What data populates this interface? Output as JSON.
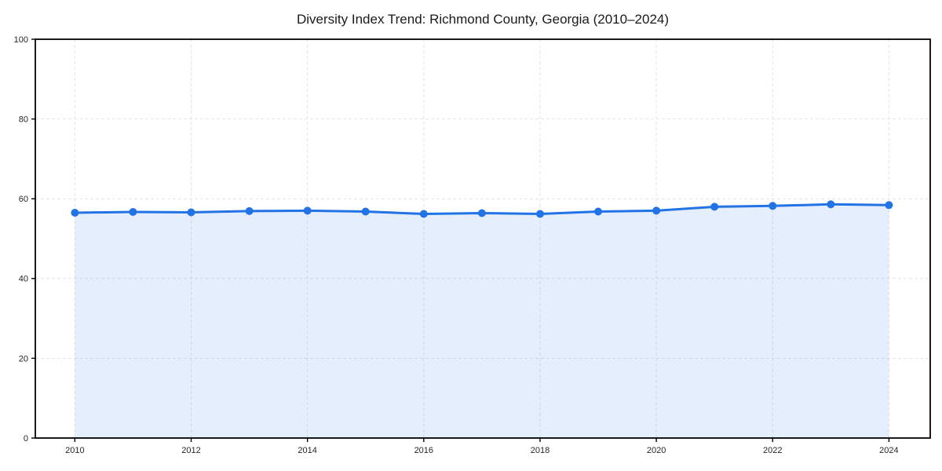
{
  "page": {
    "background": "#ffffff"
  },
  "chart_data": {
    "type": "line",
    "title": "Diversity Index Trend: Richmond County, Georgia (2010–2024)",
    "xlabel": "",
    "ylabel": "",
    "series": [
      {
        "name": "Diversity Index",
        "x": [
          2010,
          2011,
          2012,
          2013,
          2014,
          2015,
          2016,
          2017,
          2018,
          2019,
          2020,
          2021,
          2022,
          2023,
          2024
        ],
        "values": [
          56.5,
          56.7,
          56.6,
          56.9,
          57.0,
          56.8,
          56.2,
          56.4,
          56.2,
          56.8,
          57.0,
          58.0,
          58.2,
          58.6,
          58.4
        ]
      }
    ],
    "xlim": [
      2009.32,
      2024.71
    ],
    "ylim": [
      0,
      100
    ],
    "xticks": [
      2010,
      2012,
      2014,
      2016,
      2018,
      2020,
      2022,
      2024
    ],
    "yticks": [
      0,
      20,
      40,
      60,
      80,
      100
    ],
    "grid": true,
    "grid_style": "dashed",
    "legend": false,
    "area_fill": true,
    "marker": "circle",
    "colors": {
      "line": "#2273e5",
      "fill": "rgba(34,115,229,0.12)",
      "grid": "#e4e4e4",
      "spine": "#000000",
      "title_text": "#1a1a1a",
      "tick_text": "#262626"
    }
  }
}
